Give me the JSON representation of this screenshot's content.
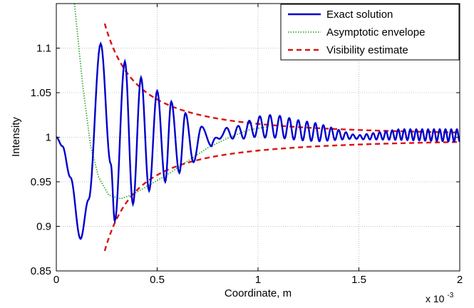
{
  "chart_data": {
    "type": "line",
    "title": "",
    "xlabel": "Coordinate, m",
    "ylabel": "Intensity",
    "x_multiplier_label": "x 10",
    "x_multiplier_exponent": "-3",
    "xlim": [
      0,
      2
    ],
    "ylim": [
      0.85,
      1.15
    ],
    "x_ticks": [
      "0",
      "0.5",
      "1",
      "1.5",
      "2"
    ],
    "y_ticks": [
      "0.85",
      "0.9",
      "0.95",
      "1",
      "1.05",
      "1.1"
    ],
    "x_tick_values": [
      0,
      0.5,
      1,
      1.5,
      2
    ],
    "y_tick_values": [
      0.85,
      0.9,
      0.95,
      1,
      1.05,
      1.1
    ],
    "grid": true,
    "legend_position": "top-right",
    "series": [
      {
        "name": "Exact solution",
        "color": "#0000cc",
        "style": "solid",
        "points": [
          [
            0,
            1.0
          ],
          [
            0.03,
            0.99
          ],
          [
            0.07,
            0.955
          ],
          [
            0.12,
            0.886
          ],
          [
            0.16,
            0.93
          ],
          [
            0.22,
            1.105
          ],
          [
            0.27,
            0.97
          ],
          [
            0.29,
            0.906
          ],
          [
            0.34,
            1.085
          ],
          [
            0.38,
            0.925
          ],
          [
            0.42,
            1.067
          ],
          [
            0.46,
            0.94
          ],
          [
            0.5,
            1.052
          ],
          [
            0.54,
            0.95
          ],
          [
            0.57,
            1.04
          ],
          [
            0.61,
            0.96
          ],
          [
            0.64,
            1.027
          ],
          [
            0.68,
            0.972
          ],
          [
            0.72,
            1.012
          ],
          [
            0.77,
            0.99
          ],
          [
            0.82,
            1.005
          ],
          [
            0.9,
            1.005
          ],
          [
            1.0,
            1.012
          ],
          [
            1.1,
            1.012
          ],
          [
            1.2,
            1.008
          ],
          [
            1.35,
            1.004
          ],
          [
            1.5,
            1.0
          ],
          [
            1.7,
            1.003
          ],
          [
            2.0,
            1.002
          ]
        ],
        "oscillation": [
          [
            0.8,
            0.004,
            0.06
          ],
          [
            1.05,
            0.013,
            0.05
          ],
          [
            1.3,
            0.01,
            0.04
          ],
          [
            1.48,
            0.002,
            0.034
          ],
          [
            1.7,
            0.006,
            0.03
          ],
          [
            2.0,
            0.007,
            0.028
          ]
        ]
      },
      {
        "name": "Asymptotic envelope",
        "color": "#33aa33",
        "style": "dotted",
        "points": [
          [
            0.09,
            1.15
          ],
          [
            0.13,
            1.06
          ],
          [
            0.17,
            0.99
          ],
          [
            0.21,
            0.955
          ],
          [
            0.26,
            0.935
          ],
          [
            0.32,
            0.931
          ],
          [
            0.38,
            0.936
          ],
          [
            0.45,
            0.945
          ],
          [
            0.55,
            0.958
          ],
          [
            0.65,
            0.973
          ],
          [
            0.75,
            0.988
          ],
          [
            0.85,
            0.999
          ],
          [
            0.95,
            1.008
          ],
          [
            1.05,
            1.012
          ]
        ]
      },
      {
        "name": "Visibility estimate",
        "color": "#dd1111",
        "style": "dashed",
        "envelope": {
          "center": 1.0,
          "amplitude_at_0.25": 0.12,
          "exponent": 1.5,
          "x_start": 0.24,
          "x_end": 2.0
        }
      }
    ]
  }
}
